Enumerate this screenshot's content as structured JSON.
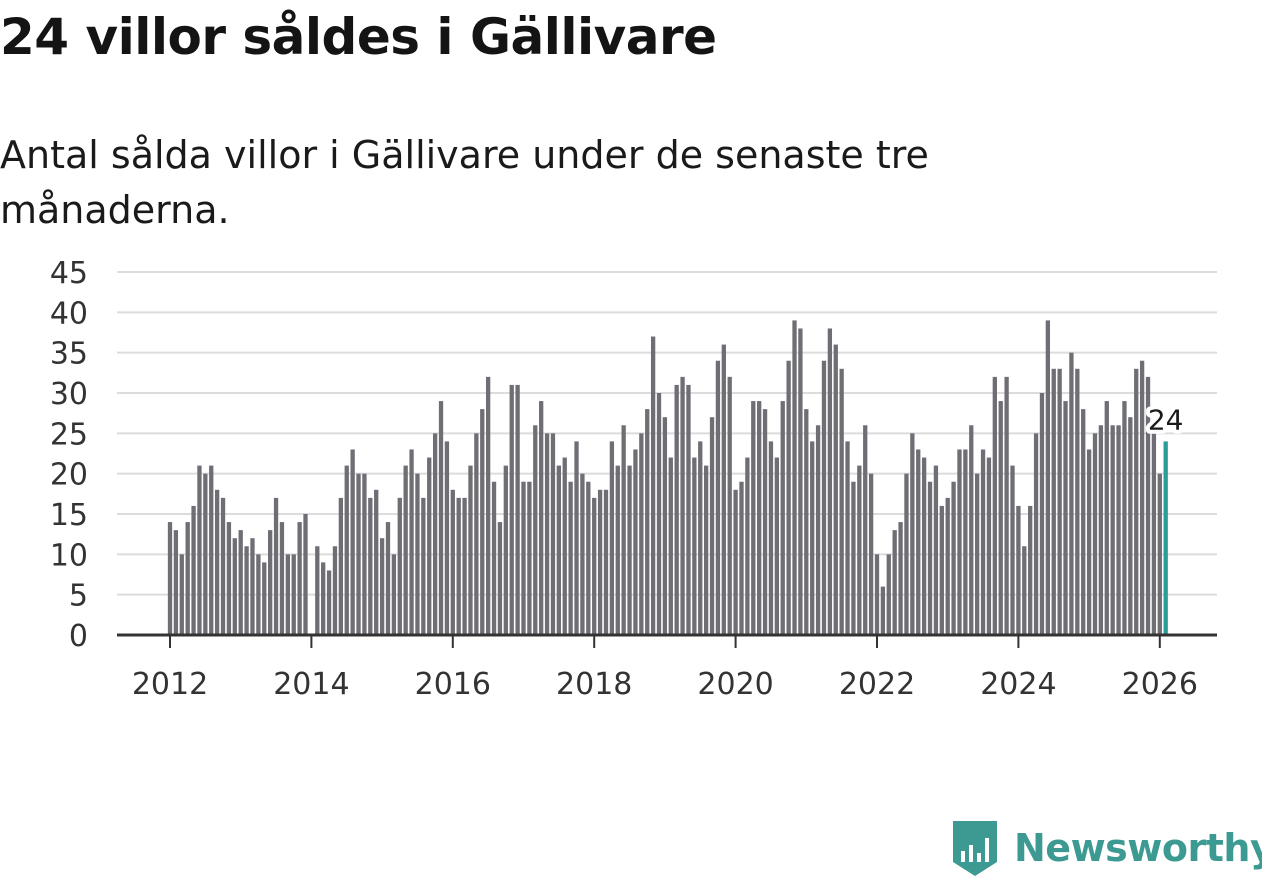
{
  "title": "24 villor såldes i Gällivare",
  "subtitle": "Antal sålda villor i Gällivare under de senaste tre månaderna.",
  "brand": {
    "name": "Newsworthy",
    "icon": "newsworthy-logo-icon",
    "color": "#3d9a93"
  },
  "chart_data": {
    "type": "bar",
    "title": "24 villor såldes i Gällivare",
    "subtitle": "Antal sålda villor i Gällivare under de senaste tre månaderna.",
    "xlabel": "",
    "ylabel": "",
    "start": "2012-01",
    "frequency": "monthly",
    "x_ticks": [
      "2012",
      "2014",
      "2016",
      "2018",
      "2020",
      "2022",
      "2024",
      "2026"
    ],
    "y_ticks": [
      "0",
      "5",
      "10",
      "15",
      "20",
      "25",
      "30",
      "35",
      "40",
      "45"
    ],
    "ylim": [
      0,
      45
    ],
    "grid": true,
    "bar_color": "#6e6e74",
    "highlight_color": "#2a9d96",
    "highlight_label": "24",
    "values": [
      14,
      13,
      10,
      14,
      16,
      21,
      20,
      21,
      18,
      17,
      14,
      12,
      13,
      11,
      12,
      10,
      9,
      13,
      17,
      14,
      10,
      10,
      14,
      15,
      0,
      11,
      9,
      8,
      11,
      17,
      21,
      23,
      20,
      20,
      17,
      18,
      12,
      14,
      10,
      17,
      21,
      23,
      20,
      17,
      22,
      25,
      29,
      24,
      18,
      17,
      17,
      21,
      25,
      28,
      32,
      19,
      14,
      21,
      31,
      31,
      19,
      19,
      26,
      29,
      25,
      25,
      21,
      22,
      19,
      24,
      20,
      19,
      17,
      18,
      18,
      24,
      21,
      26,
      21,
      23,
      25,
      28,
      37,
      30,
      27,
      22,
      31,
      32,
      31,
      22,
      24,
      21,
      27,
      34,
      36,
      32,
      18,
      19,
      22,
      29,
      29,
      28,
      24,
      22,
      29,
      34,
      39,
      38,
      28,
      24,
      26,
      34,
      38,
      36,
      33,
      24,
      19,
      21,
      26,
      20,
      10,
      6,
      10,
      13,
      14,
      20,
      25,
      23,
      22,
      19,
      21,
      16,
      17,
      19,
      23,
      23,
      26,
      20,
      23,
      22,
      32,
      29,
      32,
      21,
      16,
      11,
      16,
      25,
      30,
      39,
      33,
      33,
      29,
      35,
      33,
      28,
      23,
      25,
      26,
      29,
      26,
      26,
      29,
      27,
      33,
      34,
      32,
      26,
      20,
      24
    ]
  }
}
